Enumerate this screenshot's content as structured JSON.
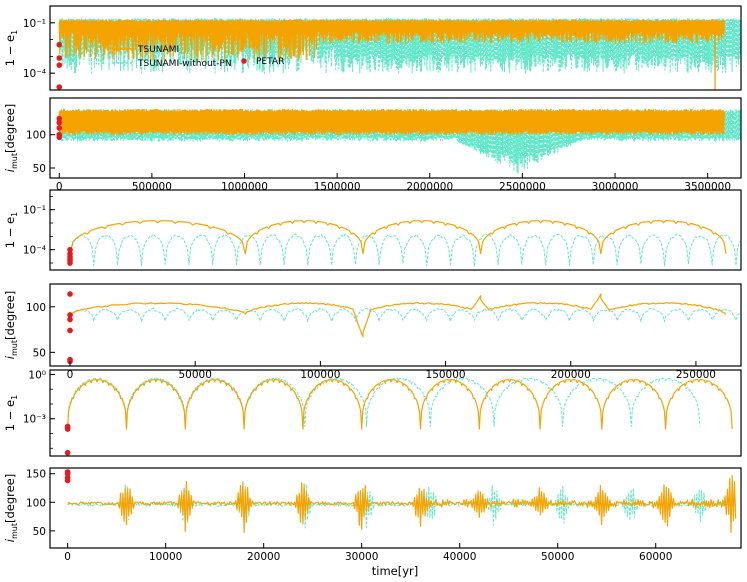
{
  "colors": {
    "tsunami": "#f5a300",
    "tsunami_without_pn": "#5ee8c8",
    "petar": "#e8191c",
    "axes": "#000000"
  },
  "legend": {
    "placement": "inside-left of top panel",
    "items": [
      {
        "label": "TSUNAMI",
        "style": "solid-line",
        "color": "#f5a300"
      },
      {
        "label": "TSUNAMI-without-PN",
        "style": "dashed-line",
        "color": "#5ee8c8"
      },
      {
        "label": "PETAR",
        "style": "dot",
        "color": "#e8191c"
      }
    ]
  },
  "xlabel": "time[yr]",
  "chart_data": [
    {
      "type": "line",
      "panel": 1,
      "ylabel": "1 − e1",
      "yscale": "log",
      "ylim": [
        1e-05,
        1
      ],
      "yticks": [
        {
          "v": 0.1,
          "label": "10⁻¹"
        },
        {
          "v": 0.0001,
          "label": "10⁻⁴"
        }
      ],
      "xlim": [
        -50000,
        3680000
      ],
      "xticks": [],
      "series": [
        {
          "name": "TSUNAMI",
          "color": "#f5a300",
          "pattern": "dense-oscillation",
          "x_end": 3590000,
          "envelope_top": 0.15,
          "envelope_bottom": 0.006,
          "deep_dips": [
            [
              3540000,
              1e-05
            ]
          ]
        },
        {
          "name": "TSUNAMI-without-PN",
          "color": "#5ee8c8",
          "pattern": "dense-oscillation",
          "x_end": 3680000,
          "envelope_top": 0.18,
          "envelope_bottom": 0.0001
        }
      ],
      "points": {
        "name": "PETAR",
        "x": [
          0,
          0,
          0,
          0
        ],
        "y": [
          0.005,
          0.0008,
          0.0003,
          1.5e-05
        ]
      }
    },
    {
      "type": "line",
      "panel": 2,
      "ylabel": "i_mut[degree]",
      "yscale": "linear",
      "ylim": [
        35,
        155
      ],
      "yticks": [
        {
          "v": 50,
          "label": "50"
        },
        {
          "v": 100,
          "label": "100"
        }
      ],
      "xlim": [
        -50000,
        3680000
      ],
      "xticks": [
        {
          "v": 0,
          "label": "0"
        },
        {
          "v": 500000,
          "label": "500000"
        },
        {
          "v": 1000000,
          "label": "1000000"
        },
        {
          "v": 1500000,
          "label": "1500000"
        },
        {
          "v": 2000000,
          "label": "2000000"
        },
        {
          "v": 2500000,
          "label": "2500000"
        },
        {
          "v": 3000000,
          "label": "3000000"
        },
        {
          "v": 3500000,
          "label": "3500000"
        }
      ],
      "series": [
        {
          "name": "TSUNAMI",
          "color": "#f5a300",
          "pattern": "dense-oscillation",
          "x_end": 3590000,
          "band": [
            100,
            138
          ]
        },
        {
          "name": "TSUNAMI-without-PN",
          "color": "#5ee8c8",
          "pattern": "dense-oscillation",
          "x_end": 3680000,
          "band": [
            90,
            138
          ],
          "low_excursion": {
            "x_range": [
              2150000,
              2800000
            ],
            "min": 40
          }
        }
      ],
      "points": {
        "name": "PETAR",
        "x": [
          0,
          0,
          0,
          0,
          0
        ],
        "y": [
          124,
          118,
          110,
          100,
          96
        ]
      }
    },
    {
      "type": "line",
      "panel": 3,
      "ylabel": "1 − e1",
      "yscale": "log",
      "ylim": [
        3e-06,
        3
      ],
      "yticks": [
        {
          "v": 0.1,
          "label": "10⁻¹"
        },
        {
          "v": 0.0001,
          "label": "10⁻⁴"
        }
      ],
      "xlim": [
        -8000,
        268000
      ],
      "xticks": [],
      "series": [
        {
          "name": "TSUNAMI",
          "color": "#f5a300",
          "pattern": "arches",
          "cycles_x": [
            0,
            70000,
            117000,
            164000,
            212000,
            262000
          ],
          "arch_top": 0.015
        },
        {
          "name": "TSUNAMI-without-PN",
          "color": "#5ee8c8",
          "pattern": "short-arches",
          "period": 9500,
          "arch_top": 0.0015,
          "arch_bottom": 1e-05
        }
      ],
      "points": {
        "name": "PETAR",
        "x": [
          0,
          0,
          0,
          0,
          0,
          0
        ],
        "y": [
          0.0001,
          5e-05,
          3e-05,
          2e-05,
          1.5e-05,
          1e-05
        ]
      }
    },
    {
      "type": "line",
      "panel": 4,
      "ylabel": "i_mut[degree]",
      "yscale": "linear",
      "ylim": [
        35,
        125
      ],
      "yticks": [
        {
          "v": 50,
          "label": "50"
        },
        {
          "v": 100,
          "label": "100"
        }
      ],
      "xlim": [
        -8000,
        268000
      ],
      "xticks": [
        {
          "v": 0,
          "label": "0"
        },
        {
          "v": 50000,
          "label": "50000"
        },
        {
          "v": 100000,
          "label": "100000"
        },
        {
          "v": 150000,
          "label": "150000"
        },
        {
          "v": 200000,
          "label": "200000"
        },
        {
          "v": 250000,
          "label": "250000"
        }
      ],
      "series": [
        {
          "name": "TSUNAMI",
          "color": "#f5a300",
          "pattern": "arches",
          "cycles_x": [
            0,
            70000,
            117000,
            164000,
            212000,
            262000
          ],
          "base": 92,
          "peak": 104,
          "features": [
            [
              40000,
              104
            ],
            [
              117000,
              67
            ],
            [
              164000,
              112
            ],
            [
              212000,
              114
            ]
          ]
        },
        {
          "name": "TSUNAMI-without-PN",
          "color": "#5ee8c8",
          "pattern": "short-arches",
          "period": 9500,
          "base": 85,
          "peak": 97
        }
      ],
      "points": {
        "name": "PETAR",
        "x": [
          0,
          0,
          0,
          0,
          0,
          0
        ],
        "y": [
          114,
          91,
          86,
          74,
          42,
          40
        ]
      }
    },
    {
      "type": "line",
      "panel": 5,
      "ylabel": "1 − e1",
      "yscale": "log",
      "ylim": [
        3e-06,
        2
      ],
      "yticks": [
        {
          "v": 1,
          "label": "10⁰"
        },
        {
          "v": 0.001,
          "label": "10⁻³"
        }
      ],
      "xlim": [
        -1800,
        68700
      ],
      "xticks": [],
      "series": [
        {
          "name": "TSUNAMI",
          "color": "#f5a300",
          "pattern": "arches",
          "cycles_x": [
            0,
            6000,
            12000,
            18000,
            24000,
            30000,
            36000,
            42000,
            48200,
            54500,
            61000,
            67800
          ],
          "arch_top": 0.45,
          "arch_bottom": 0.0002
        },
        {
          "name": "TSUNAMI-without-PN",
          "color": "#5ee8c8",
          "pattern": "arches",
          "cycles_x": [
            0,
            6000,
            12000,
            18000,
            24200,
            30500,
            37000,
            43500,
            50500,
            57500,
            64500
          ],
          "arch_top": 0.55,
          "arch_bottom": 0.0003
        }
      ],
      "points": {
        "name": "PETAR",
        "x": [
          0,
          0,
          0,
          0
        ],
        "y": [
          0.0003,
          0.00025,
          0.0002,
          5e-06
        ]
      }
    },
    {
      "type": "line",
      "panel": 6,
      "ylabel": "i_mut[degree]",
      "yscale": "linear",
      "ylim": [
        20,
        160
      ],
      "yticks": [
        {
          "v": 50,
          "label": "50"
        },
        {
          "v": 100,
          "label": "100"
        },
        {
          "v": 150,
          "label": "150"
        }
      ],
      "xlim": [
        -1800,
        68700
      ],
      "xticks": [
        {
          "v": 0,
          "label": "0"
        },
        {
          "v": 10000,
          "label": "10000"
        },
        {
          "v": 20000,
          "label": "20000"
        },
        {
          "v": 30000,
          "label": "30000"
        },
        {
          "v": 40000,
          "label": "40000"
        },
        {
          "v": 50000,
          "label": "50000"
        },
        {
          "v": 60000,
          "label": "60000"
        }
      ],
      "series": [
        {
          "name": "TSUNAMI",
          "color": "#f5a300",
          "pattern": "spiky",
          "base": 98,
          "spikes_x": [
            6000,
            12000,
            18000,
            24000,
            30000,
            36000,
            42000,
            48200,
            54500,
            61000,
            67800
          ],
          "spike_amp": [
            50,
            50,
            52,
            52,
            54,
            40,
            30,
            30,
            38,
            50,
            55
          ]
        },
        {
          "name": "TSUNAMI-without-PN",
          "color": "#5ee8c8",
          "pattern": "spiky",
          "base": 96,
          "spikes_x": [
            6000,
            12000,
            18000,
            24200,
            30500,
            37000,
            43500,
            50500,
            57500,
            64500
          ],
          "spike_amp": [
            45,
            45,
            45,
            45,
            45,
            40,
            40,
            38,
            38,
            35
          ]
        }
      ],
      "points": {
        "name": "PETAR",
        "x": [
          0,
          0,
          0,
          0
        ],
        "y": [
          153,
          150,
          143,
          138
        ]
      }
    }
  ]
}
